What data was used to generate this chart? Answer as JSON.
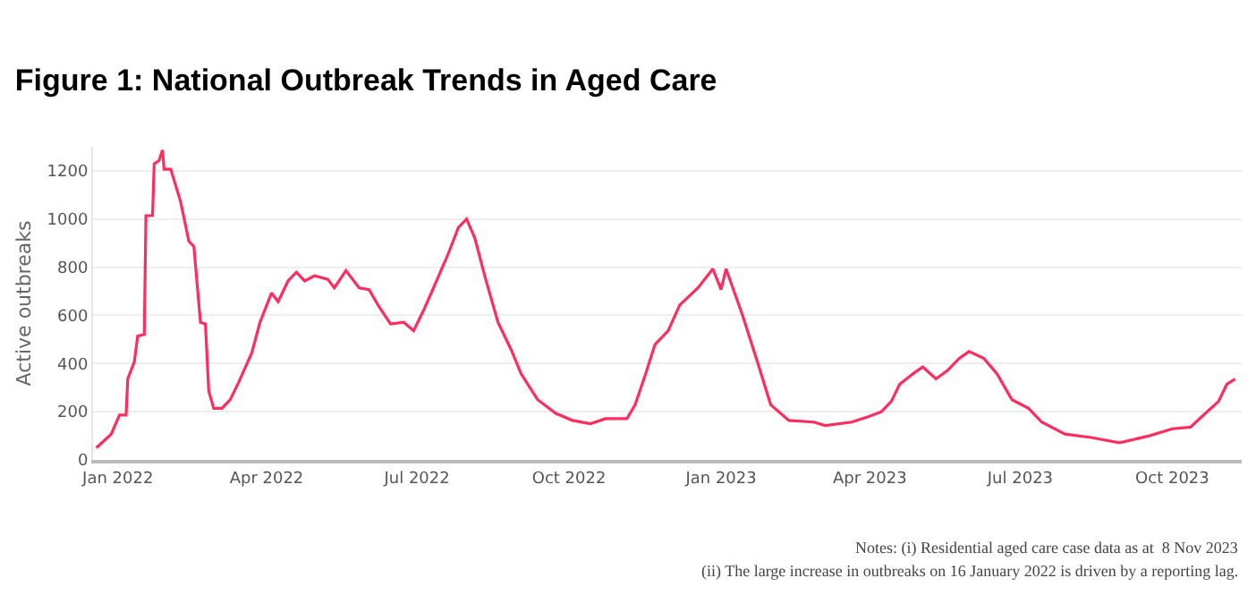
{
  "chart_data": {
    "type": "line",
    "title": "Figure 1: National Outbreak Trends in Aged Care",
    "ylabel": "Active outbreaks",
    "x": [
      "2021-12-19",
      "2021-12-28",
      "2022-01-02",
      "2022-01-06",
      "2022-01-07",
      "2022-01-11",
      "2022-01-13",
      "2022-01-17",
      "2022-01-18",
      "2022-01-22",
      "2022-01-23",
      "2022-01-26",
      "2022-01-28",
      "2022-01-29",
      "2022-02-02",
      "2022-02-08",
      "2022-02-13",
      "2022-02-16",
      "2022-02-20",
      "2022-02-23",
      "2022-02-25",
      "2022-02-28",
      "2022-03-05",
      "2022-03-10",
      "2022-03-15",
      "2022-03-23",
      "2022-03-28",
      "2022-04-04",
      "2022-04-08",
      "2022-04-14",
      "2022-04-19",
      "2022-04-24",
      "2022-04-30",
      "2022-05-08",
      "2022-05-12",
      "2022-05-19",
      "2022-05-27",
      "2022-06-02",
      "2022-06-08",
      "2022-06-15",
      "2022-06-23",
      "2022-06-29",
      "2022-07-05",
      "2022-07-11",
      "2022-07-20",
      "2022-07-26",
      "2022-07-31",
      "2022-08-05",
      "2022-08-11",
      "2022-08-19",
      "2022-08-27",
      "2022-09-02",
      "2022-09-12",
      "2022-09-23",
      "2022-10-03",
      "2022-10-14",
      "2022-10-23",
      "2022-11-05",
      "2022-11-10",
      "2022-11-16",
      "2022-11-22",
      "2022-11-30",
      "2022-12-07",
      "2022-12-18",
      "2022-12-27",
      "2023-01-01",
      "2023-01-04",
      "2023-01-14",
      "2023-01-23",
      "2023-01-31",
      "2023-02-11",
      "2023-02-26",
      "2023-03-05",
      "2023-03-21",
      "2023-03-31",
      "2023-04-08",
      "2023-04-14",
      "2023-04-19",
      "2023-04-27",
      "2023-05-03",
      "2023-05-11",
      "2023-05-18",
      "2023-05-25",
      "2023-05-31",
      "2023-06-09",
      "2023-06-17",
      "2023-06-26",
      "2023-07-06",
      "2023-07-14",
      "2023-07-28",
      "2023-08-13",
      "2023-08-30",
      "2023-09-17",
      "2023-10-01",
      "2023-10-12",
      "2023-10-21",
      "2023-10-29",
      "2023-11-03",
      "2023-11-08"
    ],
    "series": [
      {
        "color": "#ff2d5e",
        "values": [
          50,
          107,
          186,
          186,
          336,
          407,
          514,
          521,
          1014,
          1014,
          1229,
          1243,
          1286,
          1207,
          1207,
          1071,
          907,
          886,
          571,
          564,
          286,
          214,
          214,
          250,
          321,
          443,
          571,
          693,
          657,
          743,
          779,
          743,
          764,
          750,
          714,
          786,
          714,
          707,
          636,
          564,
          571,
          536,
          621,
          714,
          857,
          964,
          1000,
          921,
          764,
          571,
          457,
          357,
          250,
          193,
          164,
          150,
          171,
          171,
          229,
          350,
          479,
          536,
          643,
          714,
          793,
          707,
          793,
          600,
          407,
          229,
          164,
          157,
          143,
          157,
          179,
          200,
          243,
          314,
          357,
          386,
          336,
          371,
          421,
          450,
          421,
          357,
          250,
          214,
          157,
          107,
          93,
          71,
          100,
          129,
          136,
          193,
          243,
          314,
          336
        ]
      }
    ],
    "xlim": [
      "2021-12-17",
      "2023-11-12"
    ],
    "xticks": [
      {
        "value": "2022-01-01",
        "label": "Jan 2022"
      },
      {
        "value": "2022-04-01",
        "label": "Apr 2022"
      },
      {
        "value": "2022-07-01",
        "label": "Jul 2022"
      },
      {
        "value": "2022-10-01",
        "label": "Oct 2022"
      },
      {
        "value": "2023-01-01",
        "label": "Jan 2023"
      },
      {
        "value": "2023-04-01",
        "label": "Apr 2023"
      },
      {
        "value": "2023-07-01",
        "label": "Jul 2023"
      },
      {
        "value": "2023-10-01",
        "label": "Oct 2023"
      }
    ],
    "ylim": [
      0,
      1300
    ],
    "yticks": [
      0,
      200,
      400,
      600,
      800,
      1000,
      1200
    ],
    "grid": "y",
    "marker": "none",
    "line_style": "solid",
    "annotations": [
      "Notes: (i) Residential aged care case data as at  8 Nov 2023",
      "(ii) The large increase in outbreaks on 16 January 2022 is driven by a reporting lag."
    ]
  }
}
